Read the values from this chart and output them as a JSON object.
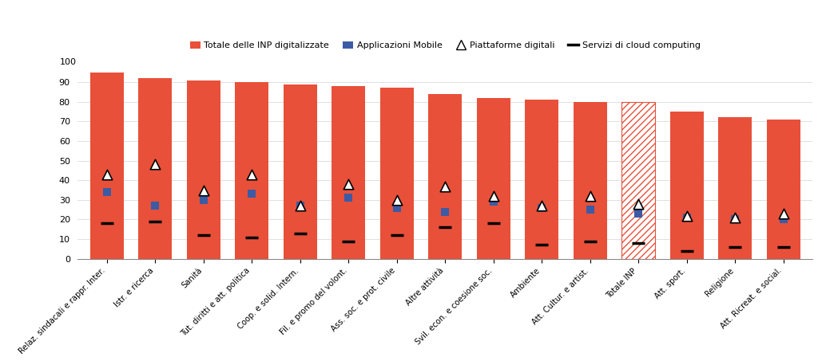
{
  "categories": [
    "Relaz. sindacali e rappr. Inter.",
    "Istr. e ricerca",
    "Sanità",
    "Tut. diritti e att. politica",
    "Coop. e solid. Intern.",
    "Fil. e promo del volont.",
    "Ass. soc. e prot. civile",
    "Altre attività",
    "Svil. econ. e coesione soc.",
    "Ambiente",
    "Att. Cultur. e artist.",
    "Totale INP",
    "Att. sport.",
    "Religione",
    "Att. Ricreat. e social."
  ],
  "bar_values": [
    95,
    92,
    91,
    90,
    89,
    88,
    87,
    84,
    82,
    81,
    80,
    80,
    75,
    72,
    71
  ],
  "app_mobile": [
    34,
    27,
    30,
    33,
    27,
    31,
    26,
    24,
    29,
    26,
    25,
    23,
    21,
    20,
    20
  ],
  "piattaforme": [
    43,
    48,
    35,
    43,
    27,
    38,
    30,
    37,
    32,
    27,
    32,
    28,
    22,
    21,
    23
  ],
  "cloud": [
    18,
    19,
    12,
    11,
    13,
    9,
    12,
    16,
    18,
    7,
    9,
    8,
    4,
    6,
    6
  ],
  "bar_color": "#E8503A",
  "app_color": "#3B5BA5",
  "legend_labels": [
    "Totale delle INP digitalizzate",
    "Applicazioni Mobile",
    "Piattaforme digitali",
    "Servizi di cloud computing"
  ],
  "ylim": [
    0,
    100
  ],
  "yticks": [
    0,
    10,
    20,
    30,
    40,
    50,
    60,
    70,
    80,
    90
  ],
  "totale_inp_index": 11
}
